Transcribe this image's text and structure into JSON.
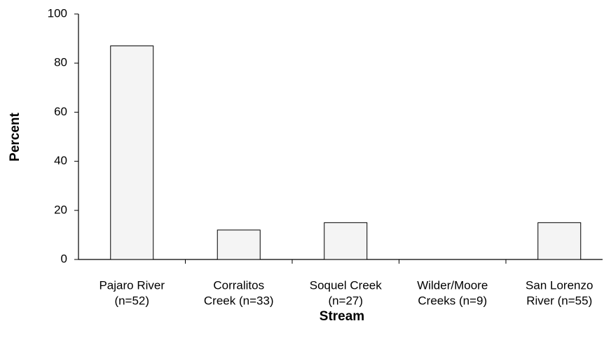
{
  "chart_data": {
    "type": "bar",
    "categories": [
      [
        "Pajaro River",
        "(n=52)"
      ],
      [
        "Corralitos",
        "Creek (n=33)"
      ],
      [
        "Soquel Creek",
        "(n=27)"
      ],
      [
        "Wilder/Moore",
        "Creeks (n=9)"
      ],
      [
        "San Lorenzo",
        "River (n=55)"
      ]
    ],
    "values": [
      87,
      12,
      15,
      0,
      15
    ],
    "color": "#f4f4f4",
    "xlabel": "Stream",
    "ylabel": "Percent",
    "ylim": [
      0,
      100
    ],
    "yticks": [
      0,
      20,
      40,
      60,
      80,
      100
    ],
    "grid": false
  }
}
